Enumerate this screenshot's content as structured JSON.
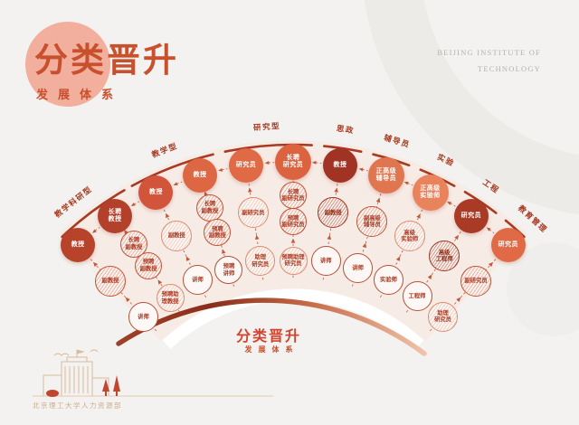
{
  "header": {
    "title": "分类晋升",
    "subtitle": "发展体系",
    "org_line1": "BEIJING INSTITUTE OF",
    "org_line2": "TECHNOLOGY"
  },
  "center_label": {
    "title": "分类晋升",
    "subtitle": "发展体系"
  },
  "footer": {
    "caption": "北京理工大学人力资源部"
  },
  "colors": {
    "accent": "#c8502c",
    "rim": "#a83a22",
    "dash": "#c05a3c",
    "fan_fill": "#f7ebe6",
    "arc_gradient": [
      "#9c4027",
      "#8a2e1b",
      "#c66a47",
      "#efc2a9"
    ]
  },
  "fan": {
    "categories": [
      {
        "label": "教学科研型",
        "angle": -38.25,
        "arc_start": -43.5,
        "arc_end": -30.2
      },
      {
        "label": "教学型",
        "angle": -21.25,
        "arc_start": -28.7,
        "arc_end": -13.8
      },
      {
        "label": "研究型",
        "angle": -4.25,
        "arc_start": -11.7,
        "arc_end": 3.2
      },
      {
        "label": "思政",
        "angle": 8.5,
        "arc_start": 5.3,
        "arc_end": 11.7
      },
      {
        "label": "辅导员",
        "angle": 17,
        "arc_start": 13.8,
        "arc_end": 20.2
      },
      {
        "label": "实验",
        "angle": 25.5,
        "arc_start": 22.3,
        "arc_end": 28.7
      },
      {
        "label": "工程",
        "angle": 34,
        "arc_start": 30.8,
        "arc_end": 37.2
      },
      {
        "label": "教育管理",
        "angle": 42.5,
        "arc_start": 39.3,
        "arc_end": 43.5
      }
    ],
    "spokes": [
      {
        "angle": -42.5,
        "circles": [
          {
            "label": "教授",
            "style": "solid",
            "color": "#b7432b",
            "r": 352,
            "size": 38
          },
          {
            "label": "副教授",
            "style": "striped",
            "r": 299,
            "size": 34
          },
          {
            "label": "讲师",
            "style": "outline",
            "r": 245,
            "size": 33
          }
        ]
      },
      {
        "angle": -34,
        "circles": [
          {
            "label": "长聘\n教授",
            "style": "solid",
            "color": "#b2402a",
            "r": 352,
            "size": 38
          },
          {
            "label": "长聘\n副教授",
            "style": "striped",
            "r": 315,
            "size": 30
          },
          {
            "label": "预聘\n副教授",
            "style": "striped",
            "r": 286,
            "size": 30
          },
          {
            "label": "预聘助\n理教授",
            "style": "striped-light",
            "r": 243,
            "size": 31
          }
        ]
      },
      {
        "angle": -25.5,
        "circles": [
          {
            "label": "教授",
            "style": "solid",
            "color": "#d2543a",
            "r": 352,
            "size": 38
          },
          {
            "label": "副教授",
            "style": "striped-light",
            "r": 299,
            "size": 34
          },
          {
            "label": "讲师",
            "style": "outline",
            "r": 245,
            "size": 33
          }
        ]
      },
      {
        "angle": -17,
        "circles": [
          {
            "label": "教授",
            "style": "solid",
            "color": "#dd6742",
            "r": 352,
            "size": 38
          },
          {
            "label": "长聘\n副教授",
            "style": "striped",
            "r": 315,
            "size": 30
          },
          {
            "label": "预聘\n副教授",
            "style": "striped",
            "r": 286,
            "size": 30
          },
          {
            "label": "预聘\n讲师",
            "style": "outline",
            "r": 243,
            "size": 31
          }
        ]
      },
      {
        "angle": -8.5,
        "circles": [
          {
            "label": "研究员",
            "style": "solid",
            "color": "#e06a45",
            "r": 352,
            "size": 38
          },
          {
            "label": "副研究员",
            "style": "striped-light",
            "r": 299,
            "size": 34
          },
          {
            "label": "助理\n研究员",
            "style": "striped-light",
            "r": 245,
            "size": 33
          }
        ]
      },
      {
        "angle": 0,
        "circles": [
          {
            "label": "长聘\n研究员",
            "style": "solid",
            "color": "#dc6340",
            "r": 352,
            "size": 40
          },
          {
            "label": "长聘\n副研究员",
            "style": "striped",
            "r": 315,
            "size": 30
          },
          {
            "label": "预聘\n副研究员",
            "style": "striped",
            "r": 286,
            "size": 30
          },
          {
            "label": "预聘助理\n研究员",
            "style": "striped-light",
            "r": 243,
            "size": 31
          }
        ]
      },
      {
        "angle": 8.5,
        "circles": [
          {
            "label": "教授",
            "style": "solid",
            "color": "#a03323",
            "r": 352,
            "size": 38
          },
          {
            "label": "副教授",
            "style": "striped-dark",
            "r": 299,
            "size": 34
          },
          {
            "label": "讲师",
            "style": "outline",
            "r": 245,
            "size": 33
          }
        ]
      },
      {
        "angle": 17,
        "circles": [
          {
            "label": "正高级\n辅导员",
            "style": "solid",
            "color": "#e0764f",
            "r": 352,
            "size": 40
          },
          {
            "label": "副高级\n辅导员",
            "style": "striped",
            "r": 299,
            "size": 34
          },
          {
            "label": "讲师",
            "style": "outline",
            "r": 245,
            "size": 33
          }
        ]
      },
      {
        "angle": 25.5,
        "circles": [
          {
            "label": "正高级\n实验师",
            "style": "solid",
            "color": "#e8835c",
            "r": 352,
            "size": 40
          },
          {
            "label": "高级\n实验师",
            "style": "striped-light",
            "r": 299,
            "size": 34
          },
          {
            "label": "实验师",
            "style": "outline",
            "r": 245,
            "size": 33
          }
        ]
      },
      {
        "angle": 34,
        "circles": [
          {
            "label": "研究员",
            "style": "solid",
            "color": "#a83a26",
            "r": 352,
            "size": 38
          },
          {
            "label": "高级\n工程师",
            "style": "striped-dark",
            "r": 299,
            "size": 34
          },
          {
            "label": "工程师",
            "style": "outline",
            "r": 245,
            "size": 33
          }
        ]
      },
      {
        "angle": 42.5,
        "circles": [
          {
            "label": "研究员",
            "style": "solid",
            "color": "#e06a45",
            "r": 352,
            "size": 38
          },
          {
            "label": "副研究员",
            "style": "striped",
            "r": 299,
            "size": 34
          },
          {
            "label": "助理\n研究员",
            "style": "striped-light",
            "r": 245,
            "size": 33
          }
        ]
      }
    ]
  }
}
